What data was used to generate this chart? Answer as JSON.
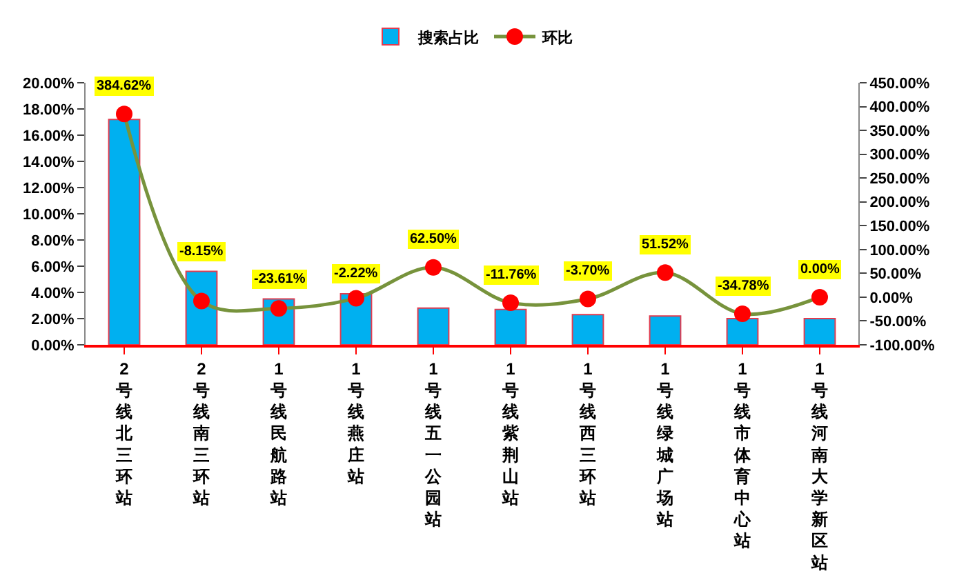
{
  "chart_data": {
    "type": "bar",
    "categories": [
      "2号线北三环站",
      "2号线南三环站",
      "1号线民航路站",
      "1号线燕庄站",
      "1号线五一公园站",
      "1号线紫荆山站",
      "1号线西三环站",
      "1号线绿城广场站",
      "1号线市体育中心站",
      "1号线河南大学新区站"
    ],
    "series": [
      {
        "name": "搜索占比",
        "color": "#00b0f0",
        "values": [
          17.2,
          5.6,
          3.5,
          3.9,
          2.8,
          2.7,
          2.3,
          2.2,
          2.0,
          2.0
        ]
      },
      {
        "name": "环比",
        "type": "line",
        "axis": "y2",
        "color": "#77933c",
        "marker": "circle",
        "values": [
          384.62,
          -8.15,
          -23.61,
          -2.22,
          62.5,
          -11.76,
          -3.7,
          51.52,
          -34.78,
          0.0
        ],
        "value_labels": [
          "384.62%",
          "-8.15%",
          "-23.61%",
          "-2.22%",
          "62.50%",
          "-11.76%",
          "-3.70%",
          "51.52%",
          "-34.78%",
          "0.00%"
        ]
      }
    ],
    "ylim": [
      0,
      20
    ],
    "yticks": [
      {
        "value": 0,
        "label": "0.00%"
      },
      {
        "value": 2,
        "label": "2.00%"
      },
      {
        "value": 4,
        "label": "4.00%"
      },
      {
        "value": 6,
        "label": "6.00%"
      },
      {
        "value": 8,
        "label": "8.00%"
      },
      {
        "value": 10,
        "label": "10.00%"
      },
      {
        "value": 12,
        "label": "12.00%"
      },
      {
        "value": 14,
        "label": "14.00%"
      },
      {
        "value": 16,
        "label": "16.00%"
      },
      {
        "value": 18,
        "label": "18.00%"
      },
      {
        "value": 20,
        "label": "20.00%"
      }
    ],
    "y2lim": [
      -100,
      450
    ],
    "y2ticks": [
      {
        "value": -100,
        "label": "-100.00%"
      },
      {
        "value": -50,
        "label": "-50.00%"
      },
      {
        "value": 0,
        "label": "0.00%"
      },
      {
        "value": 50,
        "label": "50.00%"
      },
      {
        "value": 100,
        "label": "100.00%"
      },
      {
        "value": 150,
        "label": "150.00%"
      },
      {
        "value": 200,
        "label": "200.00%"
      },
      {
        "value": 250,
        "label": "250.00%"
      },
      {
        "value": 300,
        "label": "300.00%"
      },
      {
        "value": 350,
        "label": "350.00%"
      },
      {
        "value": 400,
        "label": "400.00%"
      },
      {
        "value": 450,
        "label": "450.00%"
      }
    ],
    "grid": false,
    "legend": "top"
  }
}
